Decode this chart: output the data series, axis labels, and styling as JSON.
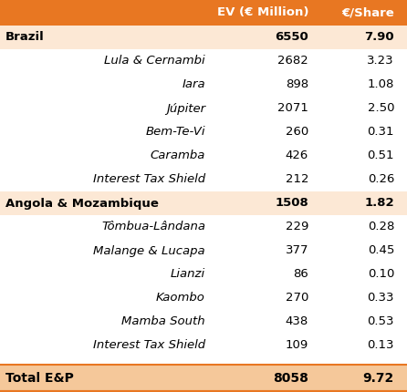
{
  "header": [
    "",
    "EV (€ Million)",
    "€/Share"
  ],
  "rows": [
    {
      "label": "Brazil",
      "ev": "6550",
      "share": "7.90",
      "bold": true,
      "indent": false,
      "highlight": true
    },
    {
      "label": "Lula & Cernambi",
      "ev": "2682",
      "share": "3.23",
      "bold": false,
      "indent": true,
      "highlight": false
    },
    {
      "label": "Iara",
      "ev": "898",
      "share": "1.08",
      "bold": false,
      "indent": true,
      "highlight": false
    },
    {
      "label": "Júpiter",
      "ev": "2071",
      "share": "2.50",
      "bold": false,
      "indent": true,
      "highlight": false
    },
    {
      "label": "Bem-Te-Vi",
      "ev": "260",
      "share": "0.31",
      "bold": false,
      "indent": true,
      "highlight": false
    },
    {
      "label": "Caramba",
      "ev": "426",
      "share": "0.51",
      "bold": false,
      "indent": true,
      "highlight": false
    },
    {
      "label": "Interest Tax Shield",
      "ev": "212",
      "share": "0.26",
      "bold": false,
      "indent": true,
      "highlight": false
    },
    {
      "label": "Angola & Mozambique",
      "ev": "1508",
      "share": "1.82",
      "bold": true,
      "indent": false,
      "highlight": true
    },
    {
      "label": "Tômbua-Lândana",
      "ev": "229",
      "share": "0.28",
      "bold": false,
      "indent": true,
      "highlight": false
    },
    {
      "label": "Malange & Lucapa",
      "ev": "377",
      "share": "0.45",
      "bold": false,
      "indent": true,
      "highlight": false
    },
    {
      "label": "Lianzi",
      "ev": "86",
      "share": "0.10",
      "bold": false,
      "indent": true,
      "highlight": false
    },
    {
      "label": "Kaombo",
      "ev": "270",
      "share": "0.33",
      "bold": false,
      "indent": true,
      "highlight": false
    },
    {
      "label": "Mamba South",
      "ev": "438",
      "share": "0.53",
      "bold": false,
      "indent": true,
      "highlight": false
    },
    {
      "label": "Interest Tax Shield",
      "ev": "109",
      "share": "0.13",
      "bold": false,
      "indent": true,
      "highlight": false
    }
  ],
  "total_row": {
    "label": "Total E&P",
    "ev": "8058",
    "share": "9.72",
    "bold": true
  },
  "header_bg": "#E87722",
  "header_text": "#ffffff",
  "highlight_bg": "#fce8d5",
  "total_highlight_bg": "#f5c89a",
  "bg_color": "#ffffff",
  "border_color": "#E87722",
  "data_fontsize": 9.5,
  "header_fontsize": 9.5
}
